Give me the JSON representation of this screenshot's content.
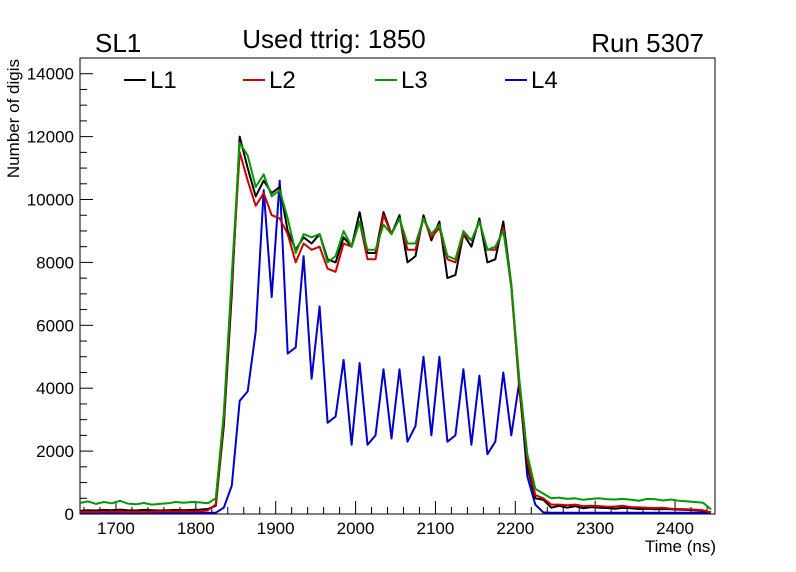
{
  "header": {
    "left_label": "SL1",
    "center_label": "Used ttrig: 1850",
    "right_label": "Run 5307"
  },
  "chart_data": {
    "type": "line",
    "xlabel": "Time (ns)",
    "ylabel": "Number of digis",
    "xlim": [
      1655,
      2450
    ],
    "ylim": [
      0,
      14500
    ],
    "x_ticks": [
      1700,
      1800,
      1900,
      2000,
      2100,
      2200,
      2300,
      2400
    ],
    "y_ticks": [
      0,
      2000,
      4000,
      6000,
      8000,
      10000,
      12000,
      14000
    ],
    "grid": false,
    "legend_position": "top",
    "x": [
      1655,
      1665,
      1675,
      1685,
      1695,
      1705,
      1715,
      1725,
      1735,
      1745,
      1755,
      1765,
      1775,
      1785,
      1795,
      1805,
      1815,
      1825,
      1835,
      1845,
      1855,
      1865,
      1875,
      1885,
      1895,
      1905,
      1915,
      1925,
      1935,
      1945,
      1955,
      1965,
      1975,
      1985,
      1995,
      2005,
      2015,
      2025,
      2035,
      2045,
      2055,
      2065,
      2075,
      2085,
      2095,
      2105,
      2115,
      2125,
      2135,
      2145,
      2155,
      2165,
      2175,
      2185,
      2195,
      2205,
      2215,
      2225,
      2235,
      2245,
      2255,
      2265,
      2275,
      2285,
      2295,
      2305,
      2315,
      2325,
      2335,
      2345,
      2355,
      2365,
      2375,
      2385,
      2395,
      2405,
      2415,
      2425,
      2435,
      2445
    ],
    "series": [
      {
        "name": "L1",
        "color": "#000000",
        "values": [
          100,
          120,
          110,
          130,
          120,
          140,
          120,
          110,
          130,
          120,
          110,
          120,
          130,
          120,
          130,
          140,
          160,
          260,
          2800,
          7000,
          12000,
          11000,
          10100,
          10600,
          10200,
          10400,
          9000,
          8400,
          8800,
          8600,
          8900,
          8100,
          8000,
          8800,
          8500,
          9600,
          8300,
          8300,
          9600,
          8900,
          9500,
          8000,
          8200,
          9500,
          8700,
          9300,
          7500,
          7600,
          8900,
          8500,
          9400,
          8000,
          8100,
          9300,
          7300,
          4000,
          1500,
          500,
          450,
          200,
          260,
          200,
          250,
          180,
          220,
          200,
          190,
          170,
          200,
          180,
          160,
          170,
          150,
          160,
          150,
          140,
          130,
          120,
          100,
          50
        ]
      },
      {
        "name": "L2",
        "color": "#cc0000",
        "values": [
          60,
          70,
          60,
          80,
          70,
          80,
          60,
          70,
          60,
          70,
          80,
          90,
          80,
          90,
          80,
          90,
          120,
          300,
          3000,
          7300,
          11500,
          10600,
          9800,
          10200,
          9500,
          9400,
          8900,
          8000,
          8600,
          8400,
          8500,
          7800,
          7700,
          8600,
          8500,
          9300,
          8100,
          8100,
          9500,
          8900,
          9400,
          8400,
          8400,
          9400,
          8800,
          9100,
          8100,
          8000,
          8900,
          8700,
          9300,
          8400,
          8400,
          9100,
          7200,
          4100,
          1700,
          600,
          500,
          300,
          300,
          280,
          300,
          250,
          260,
          250,
          230,
          240,
          260,
          220,
          210,
          200,
          190,
          200,
          170,
          160,
          150,
          140,
          120,
          50
        ]
      },
      {
        "name": "L3",
        "color": "#009900",
        "values": [
          350,
          400,
          320,
          380,
          340,
          420,
          330,
          310,
          350,
          300,
          320,
          340,
          380,
          360,
          380,
          370,
          340,
          500,
          3200,
          7600,
          11800,
          11400,
          10400,
          10800,
          10100,
          10300,
          9400,
          8300,
          8900,
          8800,
          8900,
          8000,
          8200,
          9000,
          8500,
          9300,
          8400,
          8400,
          9200,
          8900,
          9400,
          8600,
          8600,
          9400,
          8900,
          9200,
          8200,
          8100,
          9000,
          8700,
          9300,
          8400,
          8500,
          9000,
          7300,
          4300,
          1900,
          800,
          650,
          500,
          520,
          480,
          500,
          450,
          480,
          500,
          470,
          460,
          480,
          450,
          420,
          480,
          470,
          430,
          460,
          420,
          400,
          380,
          360,
          150
        ]
      },
      {
        "name": "L4",
        "color": "#0000cc",
        "values": [
          40,
          40,
          40,
          40,
          40,
          40,
          40,
          40,
          40,
          40,
          40,
          40,
          40,
          40,
          40,
          40,
          40,
          40,
          200,
          900,
          3600,
          3900,
          5800,
          10300,
          6900,
          10600,
          5100,
          5300,
          8200,
          4300,
          6600,
          2900,
          3100,
          4900,
          2200,
          4800,
          2200,
          2500,
          4600,
          2400,
          4600,
          2300,
          2800,
          5000,
          2500,
          5000,
          2300,
          2500,
          4600,
          2200,
          4400,
          1900,
          2300,
          4500,
          2500,
          4200,
          1200,
          300,
          50,
          40,
          40,
          40,
          40,
          40,
          40,
          40,
          40,
          40,
          40,
          40,
          40,
          40,
          40,
          40,
          40,
          40,
          40,
          40,
          40,
          40
        ]
      }
    ]
  }
}
